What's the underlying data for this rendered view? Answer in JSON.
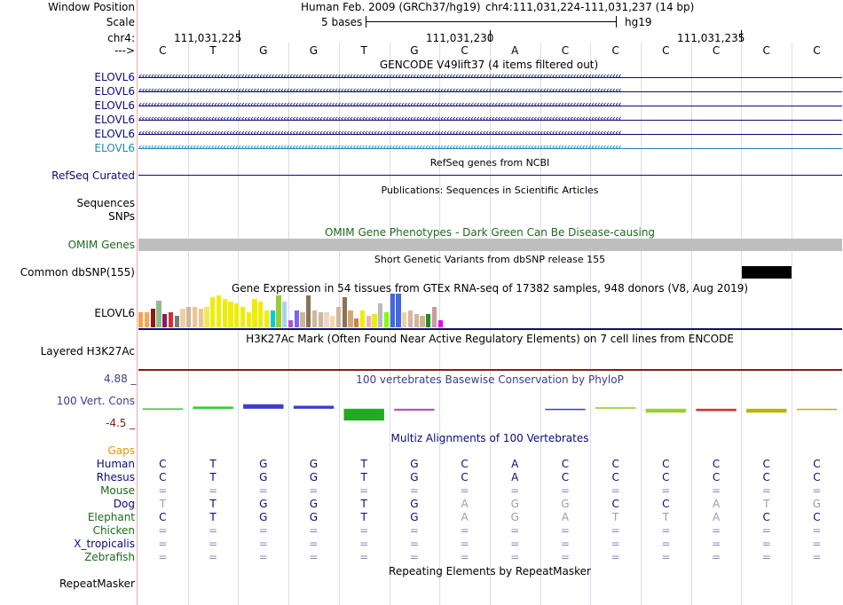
{
  "header": {
    "window_position_label": "Window Position",
    "assembly": "Human Feb. 2009 (GRCh37/hg19)",
    "position": "chr4:111,031,224-111,031,237 (14 bp)",
    "scale_label": "Scale",
    "scale_text": "5 bases",
    "scale_db": "hg19",
    "chrom_label": "chr4:",
    "coords": [
      "111,031,225",
      "111,031,230",
      "111,031,235"
    ],
    "strand_label": "--->"
  },
  "bases": [
    "C",
    "T",
    "G",
    "G",
    "T",
    "G",
    "C",
    "A",
    "C",
    "C",
    "C",
    "C",
    "C",
    "C"
  ],
  "tracks": {
    "gencode": {
      "title": "GENCODE V49lift37 (4 items filtered out)",
      "items": [
        {
          "label": "ELOVL6",
          "color": "#0c0c78"
        },
        {
          "label": "ELOVL6",
          "color": "#0c0c78"
        },
        {
          "label": "ELOVL6",
          "color": "#0c0c78"
        },
        {
          "label": "ELOVL6",
          "color": "#0c0c78"
        },
        {
          "label": "ELOVL6",
          "color": "#0c0c78"
        },
        {
          "label": "ELOVL6",
          "color": "#1c88b0"
        }
      ]
    },
    "refseq": {
      "title": "RefSeq genes from NCBI",
      "label": "RefSeq Curated",
      "color": "#0c0c78"
    },
    "publications": {
      "title": "Publications: Sequences in Scientific Articles",
      "label": "Sequences"
    },
    "snps_label": "SNPs",
    "omim": {
      "title": "OMIM Gene Phenotypes - Dark Green Can Be Disease-causing",
      "label": "OMIM Genes",
      "color": "#1a6b1a"
    },
    "dbsnp": {
      "title": "Short Genetic Variants from dbSNP release 155",
      "label": "Common dbSNP(155)"
    },
    "gtex": {
      "title": "Gene Expression in 54 tissues from GTEx RNA-seq of 17382 samples, 948 donors (V8, Aug 2019)",
      "label": "ELOVL6",
      "bars": [
        {
          "v": 0.45,
          "c": "#ff9f4f"
        },
        {
          "v": 0.45,
          "c": "#ffa54f"
        },
        {
          "v": 0.55,
          "c": "#8b1a1a"
        },
        {
          "v": 0.8,
          "c": "#8fbc8f"
        },
        {
          "v": 0.4,
          "c": "#8b1c62"
        },
        {
          "v": 0.45,
          "c": "#cd3333"
        },
        {
          "v": 0.35,
          "c": "#7a7a7a"
        },
        {
          "v": 0.55,
          "c": "#eecfa1"
        },
        {
          "v": 0.6,
          "c": "#cdb79e"
        },
        {
          "v": 0.6,
          "c": "#eec591"
        },
        {
          "v": 0.55,
          "c": "#eec591"
        },
        {
          "v": 0.6,
          "c": "#eee85a"
        },
        {
          "v": 0.9,
          "c": "#eeee00"
        },
        {
          "v": 0.95,
          "c": "#eeee00"
        },
        {
          "v": 0.85,
          "c": "#eeee00"
        },
        {
          "v": 0.75,
          "c": "#eeee00"
        },
        {
          "v": 0.7,
          "c": "#eeee00"
        },
        {
          "v": 0.6,
          "c": "#eeee00"
        },
        {
          "v": 0.45,
          "c": "#eeee00"
        },
        {
          "v": 0.85,
          "c": "#eeee00"
        },
        {
          "v": 0.75,
          "c": "#eeee00"
        },
        {
          "v": 0.5,
          "c": "#eeee00"
        },
        {
          "v": 0.5,
          "c": "#00cdcd"
        },
        {
          "v": 0.95,
          "c": "#9acd32"
        },
        {
          "v": 0.75,
          "c": "#a6d4e8"
        },
        {
          "v": 0.2,
          "c": "#b452cd"
        },
        {
          "v": 0.5,
          "c": "#7a67ee"
        },
        {
          "v": 0.45,
          "c": "#cdb79e"
        },
        {
          "v": 0.95,
          "c": "#8b7355"
        },
        {
          "v": 0.5,
          "c": "#cdb79e"
        },
        {
          "v": 0.45,
          "c": "#cdb79e"
        },
        {
          "v": 0.45,
          "c": "#eed5d2"
        },
        {
          "v": 0.35,
          "c": "#ffd39b"
        },
        {
          "v": 0.6,
          "c": "#cdb79e"
        },
        {
          "v": 0.9,
          "c": "#8b7355"
        },
        {
          "v": 0.5,
          "c": "#cdaa7d"
        },
        {
          "v": 0.25,
          "c": "#cd853f"
        },
        {
          "v": 0.5,
          "c": "#eeee00"
        },
        {
          "v": 0.35,
          "c": "#eeb4b4"
        },
        {
          "v": 0.4,
          "c": "#eeee00"
        },
        {
          "v": 0.7,
          "c": "#bbbbbb"
        },
        {
          "v": 0.45,
          "c": "#7fff00"
        },
        {
          "v": 1.0,
          "c": "#4169e1"
        },
        {
          "v": 1.0,
          "c": "#4169e1"
        },
        {
          "v": 0.45,
          "c": "#eecfa1"
        },
        {
          "v": 0.5,
          "c": "#d8b4a0"
        },
        {
          "v": 0.4,
          "c": "#cdb79e"
        },
        {
          "v": 0.35,
          "c": "#d2b48c"
        },
        {
          "v": 0.4,
          "c": "#228b22"
        },
        {
          "v": 0.6,
          "c": "#cd9b9b"
        },
        {
          "v": 0.2,
          "c": "#ee00ee"
        }
      ]
    },
    "h3k27ac": {
      "title": "H3K27Ac Mark (Often Found Near Active Regulatory Elements) on 7 cell lines from ENCODE",
      "label": "Layered H3K27Ac"
    },
    "phylop": {
      "title": "100 vertebrates Basewise Conservation by PhyloP",
      "label": "100 Vert. Cons",
      "max": "4.88 _",
      "min": "-4.5 _"
    },
    "multiz": {
      "title": "Multiz Alignments of 100 Vertebrates",
      "gaps_label": "Gaps",
      "species": [
        {
          "name": "Human",
          "color": "#0c0c78",
          "bases": [
            "C",
            "T",
            "G",
            "G",
            "T",
            "G",
            "C",
            "A",
            "C",
            "C",
            "C",
            "C",
            "C",
            "C"
          ]
        },
        {
          "name": "Rhesus",
          "color": "#0c0c78",
          "bases": [
            "C",
            "T",
            "G",
            "G",
            "T",
            "G",
            "C",
            "A",
            "C",
            "C",
            "C",
            "C",
            "C",
            "C"
          ]
        },
        {
          "name": "Mouse",
          "color": "#1a6b1a",
          "bases": [
            "=",
            "=",
            "=",
            "=",
            "=",
            "=",
            "=",
            "=",
            "=",
            "=",
            "=",
            "=",
            "=",
            "="
          ]
        },
        {
          "name": "Dog",
          "color": "#0c0c78",
          "bases": [
            "T",
            "T",
            "G",
            "G",
            "T",
            "G",
            "A",
            "G",
            "G",
            "C",
            "C",
            "A",
            "T",
            "G"
          ]
        },
        {
          "name": "Elephant",
          "color": "#1a6b1a",
          "bases": [
            "C",
            "T",
            "G",
            "G",
            "T",
            "G",
            "A",
            "G",
            "A",
            "T",
            "T",
            "A",
            "C",
            "C"
          ]
        },
        {
          "name": "Chicken",
          "color": "#1a6b1a",
          "bases": [
            "=",
            "=",
            "=",
            "=",
            "=",
            "=",
            "=",
            "=",
            "=",
            "=",
            "=",
            "=",
            "=",
            "="
          ]
        },
        {
          "name": "X_tropicalis",
          "color": "#0c0c78",
          "bases": [
            "=",
            "=",
            "=",
            "=",
            "=",
            "=",
            "=",
            "=",
            "=",
            "=",
            "=",
            "=",
            "=",
            "="
          ]
        },
        {
          "name": "Zebrafish",
          "color": "#1a6b1a",
          "bases": [
            "=",
            "=",
            "=",
            "=",
            "=",
            "=",
            "=",
            "=",
            "=",
            "=",
            "=",
            "=",
            "=",
            "="
          ]
        }
      ]
    },
    "repeatmasker": {
      "title": "Repeating Elements by RepeatMasker",
      "label": "RepeatMasker"
    }
  }
}
